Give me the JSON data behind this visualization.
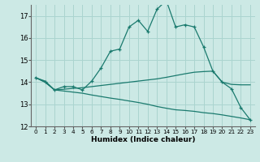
{
  "xlabel": "Humidex (Indice chaleur)",
  "background_color": "#cce9e5",
  "grid_color": "#aad4cf",
  "line_color": "#1a7a6e",
  "xlim": [
    -0.5,
    23.5
  ],
  "ylim": [
    12,
    17.5
  ],
  "yticks": [
    12,
    13,
    14,
    15,
    16,
    17
  ],
  "xticks": [
    0,
    1,
    2,
    3,
    4,
    5,
    6,
    7,
    8,
    9,
    10,
    11,
    12,
    13,
    14,
    15,
    16,
    17,
    18,
    19,
    20,
    21,
    22,
    23
  ],
  "main_line_x": [
    0,
    1,
    2,
    3,
    4,
    5,
    6,
    7,
    8,
    9,
    10,
    11,
    12,
    13,
    14,
    15,
    16,
    17,
    18,
    19,
    20,
    21,
    22,
    23
  ],
  "main_line_y": [
    14.2,
    14.0,
    13.65,
    13.8,
    13.8,
    13.65,
    14.05,
    14.65,
    15.4,
    15.5,
    16.5,
    16.8,
    16.3,
    17.3,
    17.7,
    16.5,
    16.6,
    16.5,
    15.6,
    14.5,
    14.0,
    13.7,
    12.85,
    12.3
  ],
  "upper_flat_x": [
    0,
    1,
    2,
    3,
    4,
    5,
    6,
    7,
    8,
    9,
    10,
    11,
    12,
    13,
    14,
    15,
    16,
    17,
    18,
    19,
    20,
    21,
    22,
    23
  ],
  "upper_flat_y": [
    14.2,
    14.05,
    13.65,
    13.68,
    13.72,
    13.75,
    13.8,
    13.85,
    13.9,
    13.95,
    14.0,
    14.05,
    14.1,
    14.15,
    14.22,
    14.3,
    14.38,
    14.45,
    14.48,
    14.5,
    14.0,
    13.9,
    13.88,
    13.88
  ],
  "lower_flat_x": [
    0,
    1,
    2,
    3,
    4,
    5,
    6,
    7,
    8,
    9,
    10,
    11,
    12,
    13,
    14,
    15,
    16,
    17,
    18,
    19,
    20,
    21,
    22,
    23
  ],
  "lower_flat_y": [
    14.2,
    14.0,
    13.65,
    13.6,
    13.55,
    13.5,
    13.42,
    13.35,
    13.28,
    13.22,
    13.15,
    13.08,
    13.0,
    12.9,
    12.82,
    12.75,
    12.72,
    12.68,
    12.62,
    12.58,
    12.52,
    12.45,
    12.38,
    12.3
  ]
}
